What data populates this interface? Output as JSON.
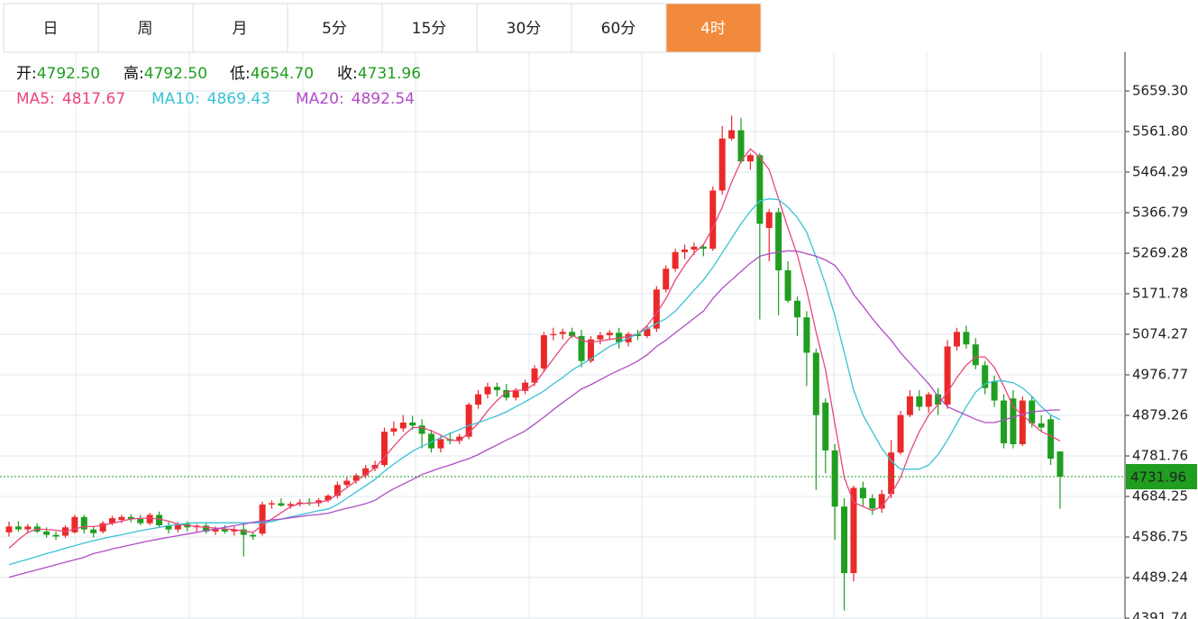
{
  "tabs": {
    "items": [
      "日",
      "周",
      "月",
      "5分",
      "15分",
      "30分",
      "60分",
      "4时"
    ],
    "active": 7
  },
  "ohlc_legend": [
    {
      "label": "开:",
      "value": "4792.50"
    },
    {
      "label": "高:",
      "value": "4792.50"
    },
    {
      "label": "低:",
      "value": "4654.70"
    },
    {
      "label": "收:",
      "value": "4731.96"
    }
  ],
  "chart_data": {
    "type": "candlestick",
    "up_color": "#ea2a2a",
    "down_color": "#1f9e1f",
    "grid": true,
    "legend_separator": ":",
    "ylim": [
      4389.6,
      5752.5
    ],
    "yticks": [
      {
        "value": 4391.74,
        "label": "4391.74"
      },
      {
        "value": 4489.24,
        "label": "4489.24"
      },
      {
        "value": 4586.75,
        "label": "4586.75"
      },
      {
        "value": 4684.25,
        "label": "4684.25"
      },
      {
        "value": 4781.76,
        "label": "4781.76"
      },
      {
        "value": 4879.26,
        "label": "4879.26"
      },
      {
        "value": 4976.77,
        "label": "4976.77"
      },
      {
        "value": 5074.27,
        "label": "5074.27"
      },
      {
        "value": 5171.78,
        "label": "5171.78"
      },
      {
        "value": 5269.28,
        "label": "5269.28"
      },
      {
        "value": 5366.79,
        "label": "5366.79"
      },
      {
        "value": 5464.29,
        "label": "5464.29"
      },
      {
        "value": 5561.8,
        "label": "5561.80"
      },
      {
        "value": 5659.3,
        "label": "5659.30"
      }
    ],
    "last_price": {
      "value": 4731.96,
      "label": "4731.96"
    },
    "candles": [
      [
        4598,
        4624,
        4588,
        4612
      ],
      [
        4612,
        4625,
        4600,
        4605
      ],
      [
        4605,
        4618,
        4595,
        4612
      ],
      [
        4612,
        4620,
        4596,
        4600
      ],
      [
        4600,
        4610,
        4585,
        4592
      ],
      [
        4592,
        4600,
        4580,
        4588
      ],
      [
        4590,
        4615,
        4585,
        4610
      ],
      [
        4598,
        4640,
        4595,
        4635
      ],
      [
        4635,
        4640,
        4595,
        4605
      ],
      [
        4605,
        4612,
        4585,
        4596
      ],
      [
        4600,
        4625,
        4595,
        4620
      ],
      [
        4620,
        4638,
        4615,
        4632
      ],
      [
        4628,
        4640,
        4620,
        4635
      ],
      [
        4635,
        4642,
        4622,
        4630
      ],
      [
        4630,
        4640,
        4615,
        4620
      ],
      [
        4620,
        4645,
        4615,
        4640
      ],
      [
        4640,
        4648,
        4610,
        4615
      ],
      [
        4615,
        4625,
        4595,
        4605
      ],
      [
        4605,
        4622,
        4598,
        4618
      ],
      [
        4618,
        4625,
        4600,
        4610
      ],
      [
        4610,
        4618,
        4600,
        4614
      ],
      [
        4614,
        4622,
        4595,
        4600
      ],
      [
        4600,
        4612,
        4592,
        4606
      ],
      [
        4606,
        4615,
        4595,
        4600
      ],
      [
        4600,
        4612,
        4590,
        4605
      ],
      [
        4605,
        4618,
        4540,
        4592
      ],
      [
        4592,
        4600,
        4580,
        4588
      ],
      [
        4595,
        4672,
        4590,
        4665
      ],
      [
        4665,
        4675,
        4655,
        4668
      ],
      [
        4668,
        4680,
        4660,
        4662
      ],
      [
        4662,
        4672,
        4655,
        4666
      ],
      [
        4666,
        4678,
        4660,
        4670
      ],
      [
        4670,
        4680,
        4662,
        4668
      ],
      [
        4668,
        4680,
        4660,
        4675
      ],
      [
        4675,
        4690,
        4670,
        4686
      ],
      [
        4686,
        4720,
        4680,
        4712
      ],
      [
        4712,
        4730,
        4705,
        4722
      ],
      [
        4722,
        4740,
        4715,
        4735
      ],
      [
        4735,
        4760,
        4728,
        4752
      ],
      [
        4752,
        4770,
        4745,
        4760
      ],
      [
        4760,
        4850,
        4755,
        4840
      ],
      [
        4840,
        4865,
        4830,
        4848
      ],
      [
        4848,
        4880,
        4840,
        4862
      ],
      [
        4862,
        4878,
        4845,
        4855
      ],
      [
        4855,
        4870,
        4800,
        4835
      ],
      [
        4835,
        4845,
        4790,
        4800
      ],
      [
        4800,
        4830,
        4790,
        4822
      ],
      [
        4822,
        4838,
        4810,
        4818
      ],
      [
        4818,
        4835,
        4810,
        4828
      ],
      [
        4828,
        4910,
        4822,
        4905
      ],
      [
        4905,
        4940,
        4895,
        4930
      ],
      [
        4930,
        4958,
        4920,
        4948
      ],
      [
        4948,
        4958,
        4925,
        4940
      ],
      [
        4940,
        4955,
        4915,
        4922
      ],
      [
        4922,
        4945,
        4915,
        4938
      ],
      [
        4938,
        4965,
        4930,
        4958
      ],
      [
        4958,
        5000,
        4950,
        4992
      ],
      [
        4992,
        5080,
        4985,
        5072
      ],
      [
        5072,
        5090,
        5060,
        5075
      ],
      [
        5075,
        5088,
        5062,
        5080
      ],
      [
        5080,
        5090,
        5065,
        5070
      ],
      [
        5070,
        5085,
        4995,
        5010
      ],
      [
        5010,
        5070,
        5005,
        5062
      ],
      [
        5062,
        5080,
        5050,
        5072
      ],
      [
        5072,
        5085,
        5060,
        5078
      ],
      [
        5078,
        5090,
        5040,
        5055
      ],
      [
        5055,
        5080,
        5045,
        5075
      ],
      [
        5075,
        5085,
        5060,
        5070
      ],
      [
        5070,
        5095,
        5065,
        5088
      ],
      [
        5088,
        5190,
        5080,
        5182
      ],
      [
        5182,
        5240,
        5175,
        5232
      ],
      [
        5232,
        5280,
        5225,
        5272
      ],
      [
        5272,
        5290,
        5255,
        5278
      ],
      [
        5278,
        5295,
        5265,
        5285
      ],
      [
        5285,
        5290,
        5262,
        5280
      ],
      [
        5280,
        5430,
        5275,
        5420
      ],
      [
        5420,
        5575,
        5410,
        5545
      ],
      [
        5545,
        5600,
        5540,
        5565
      ],
      [
        5565,
        5595,
        5485,
        5490
      ],
      [
        5490,
        5510,
        5470,
        5505
      ],
      [
        5505,
        5510,
        5110,
        5340
      ],
      [
        5330,
        5375,
        5250,
        5368
      ],
      [
        5368,
        5378,
        5120,
        5228
      ],
      [
        5228,
        5250,
        5150,
        5155
      ],
      [
        5155,
        5165,
        5070,
        5115
      ],
      [
        5115,
        5130,
        4950,
        5030
      ],
      [
        5030,
        5040,
        4700,
        4880
      ],
      [
        4910,
        4920,
        4740,
        4795
      ],
      [
        4795,
        4810,
        4580,
        4660
      ],
      [
        4660,
        4680,
        4410,
        4500
      ],
      [
        4500,
        4710,
        4480,
        4705
      ],
      [
        4705,
        4720,
        4660,
        4680
      ],
      [
        4680,
        4690,
        4640,
        4655
      ],
      [
        4655,
        4700,
        4645,
        4690
      ],
      [
        4690,
        4820,
        4680,
        4790
      ],
      [
        4790,
        4890,
        4785,
        4880
      ],
      [
        4880,
        4940,
        4875,
        4925
      ],
      [
        4925,
        4940,
        4890,
        4900
      ],
      [
        4900,
        4935,
        4885,
        4930
      ],
      [
        4930,
        4945,
        4880,
        4905
      ],
      [
        4905,
        5060,
        4895,
        5045
      ],
      [
        5045,
        5090,
        5035,
        5080
      ],
      [
        5080,
        5095,
        5040,
        5050
      ],
      [
        5050,
        5065,
        4990,
        5000
      ],
      [
        5000,
        5010,
        4930,
        4945
      ],
      [
        4960,
        4975,
        4900,
        4915
      ],
      [
        4915,
        4930,
        4800,
        4812
      ],
      [
        4920,
        4940,
        4800,
        4810
      ],
      [
        4810,
        4925,
        4805,
        4915
      ],
      [
        4915,
        4925,
        4850,
        4860
      ],
      [
        4860,
        4880,
        4840,
        4850
      ],
      [
        4870,
        4880,
        4760,
        4775
      ],
      [
        4792.5,
        4792.5,
        4654.7,
        4731.96
      ]
    ],
    "series": [
      {
        "name": "MA5",
        "color": "#e9467c",
        "legend_value": "4817.67",
        "values": [
          4560,
          4580,
          4598,
          4606,
          4605,
          4603,
          4600,
          4606,
          4612,
          4612,
          4615,
          4620,
          4625,
          4630,
          4632,
          4632,
          4630,
          4625,
          4618,
          4615,
          4612,
          4610,
          4608,
          4606,
          4605,
          4601,
          4598,
          4615,
          4630,
          4645,
          4660,
          4667,
          4668,
          4670,
          4675,
          4690,
          4705,
          4722,
          4737,
          4753,
          4778,
          4805,
          4830,
          4850,
          4850,
          4842,
          4832,
          4820,
          4818,
          4838,
          4860,
          4890,
          4915,
          4935,
          4940,
          4940,
          4955,
          4985,
          5015,
          5045,
          5072,
          5060,
          5055,
          5058,
          5062,
          5065,
          5070,
          5075,
          5095,
          5125,
          5160,
          5205,
          5240,
          5270,
          5290,
          5330,
          5380,
          5440,
          5490,
          5520,
          5500,
          5470,
          5400,
          5330,
          5265,
          5180,
          5080,
          4990,
          4860,
          4730,
          4670,
          4660,
          4650,
          4660,
          4690,
          4730,
          4790,
          4840,
          4880,
          4905,
          4935,
          4970,
          5000,
          5020,
          5020,
          4995,
          4950,
          4900,
          4880,
          4860,
          4840,
          4830,
          4817.67
        ]
      },
      {
        "name": "MA10",
        "color": "#38c2d6",
        "legend_value": "4869.43",
        "values": [
          4520,
          4527,
          4533,
          4540,
          4547,
          4553,
          4560,
          4566,
          4572,
          4578,
          4583,
          4588,
          4592,
          4597,
          4602,
          4606,
          4610,
          4614,
          4617,
          4620,
          4621,
          4621,
          4621,
          4621,
          4621,
          4621,
          4621,
          4621,
          4624,
          4630,
          4635,
          4640,
          4645,
          4650,
          4654,
          4665,
          4680,
          4695,
          4710,
          4725,
          4745,
          4762,
          4778,
          4793,
          4805,
          4815,
          4826,
          4836,
          4845,
          4855,
          4862,
          4870,
          4878,
          4888,
          4900,
          4912,
          4925,
          4938,
          4955,
          4970,
          4988,
          5002,
          5015,
          5030,
          5045,
          5055,
          5065,
          5075,
          5088,
          5100,
          5112,
          5130,
          5155,
          5180,
          5205,
          5235,
          5270,
          5305,
          5340,
          5370,
          5395,
          5400,
          5398,
          5380,
          5355,
          5320,
          5260,
          5195,
          5120,
          5030,
          4940,
          4880,
          4840,
          4800,
          4770,
          4750,
          4750,
          4750,
          4760,
          4785,
          4820,
          4860,
          4900,
          4935,
          4955,
          4962,
          4962,
          4958,
          4945,
          4925,
          4900,
          4880,
          4869.43
        ]
      },
      {
        "name": "MA20",
        "color": "#b04cc6",
        "legend_value": "4892.54",
        "values": [
          4490,
          4496,
          4502,
          4508,
          4514,
          4520,
          4526,
          4532,
          4538,
          4547,
          4552,
          4558,
          4563,
          4568,
          4573,
          4578,
          4582,
          4586,
          4590,
          4594,
          4598,
          4602,
          4606,
          4610,
          4614,
          4618,
          4622,
          4625,
          4628,
          4630,
          4633,
          4636,
          4639,
          4641,
          4644,
          4650,
          4656,
          4661,
          4667,
          4675,
          4690,
          4703,
          4714,
          4725,
          4737,
          4745,
          4753,
          4760,
          4768,
          4775,
          4785,
          4797,
          4808,
          4820,
          4830,
          4842,
          4858,
          4875,
          4893,
          4910,
          4926,
          4943,
          4953,
          4965,
          4977,
          4988,
          4998,
          5010,
          5025,
          5045,
          5060,
          5078,
          5095,
          5113,
          5130,
          5160,
          5185,
          5205,
          5225,
          5245,
          5262,
          5268,
          5272,
          5275,
          5274,
          5268,
          5262,
          5253,
          5240,
          5210,
          5170,
          5142,
          5112,
          5085,
          5060,
          5030,
          5005,
          4980,
          4955,
          4925,
          4900,
          4890,
          4880,
          4870,
          4862,
          4862,
          4868,
          4875,
          4882,
          4888,
          4890,
          4892,
          4892.54
        ]
      }
    ]
  }
}
